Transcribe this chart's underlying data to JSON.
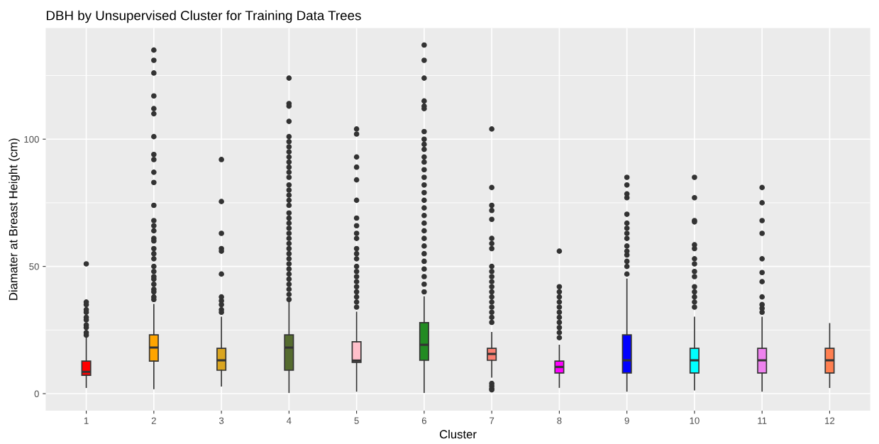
{
  "chart_data": {
    "type": "box",
    "title": "DBH by Unsupervised Cluster for Training Data Trees",
    "xlabel": "Cluster",
    "ylabel": "Diamater at Breast Height (cm)",
    "categories": [
      "1",
      "2",
      "3",
      "4",
      "5",
      "6",
      "7",
      "8",
      "9",
      "10",
      "11",
      "12"
    ],
    "colors": [
      "#ff0000",
      "#ffa500",
      "#daa520",
      "#556b2f",
      "#ffc0cb",
      "#228b22",
      "#fa8072",
      "#ff00ff",
      "#0000ff",
      "#00ffff",
      "#ee82ee",
      "#ff7f50"
    ],
    "boxes": [
      {
        "low": 2.5,
        "q1": 7.2,
        "median": 8.6,
        "q3": 12.8,
        "high": 22,
        "outliers": [
          51,
          36,
          35,
          33,
          32,
          30,
          29,
          27,
          26,
          24,
          23
        ]
      },
      {
        "low": 2,
        "q1": 12.8,
        "median": 18.1,
        "q3": 23.1,
        "high": 35,
        "outliers": [
          135,
          131,
          126,
          117,
          112,
          110,
          101,
          94,
          92,
          87,
          83,
          74,
          68,
          66,
          64,
          61,
          60,
          57,
          55,
          53,
          50,
          48,
          46,
          45,
          43,
          41,
          40,
          38,
          37
        ]
      },
      {
        "low": 3,
        "q1": 9.2,
        "median": 13.1,
        "q3": 17.8,
        "high": 30,
        "outliers": [
          92,
          75.5,
          63,
          57,
          56,
          47,
          38,
          36.5,
          35,
          33,
          32
        ]
      },
      {
        "low": 0.5,
        "q1": 9.2,
        "median": 18.1,
        "q3": 23.1,
        "high": 36,
        "outliers": [
          124,
          114,
          113,
          107,
          101,
          99,
          97,
          95,
          93,
          91,
          89,
          87,
          85,
          82,
          80,
          78,
          76,
          74,
          71,
          69,
          67,
          65,
          63,
          61,
          59,
          57,
          55,
          53,
          51,
          49,
          47,
          45,
          43,
          41,
          39,
          37
        ]
      },
      {
        "low": 1,
        "q1": 12.3,
        "median": 13,
        "q3": 20.4,
        "high": 32,
        "outliers": [
          104,
          102,
          93,
          89,
          84,
          76,
          69,
          66,
          63,
          61,
          57,
          55,
          53,
          50,
          48,
          46,
          44,
          42,
          40,
          38,
          36,
          34
        ]
      },
      {
        "low": 0.5,
        "q1": 13.1,
        "median": 19.2,
        "q3": 27.9,
        "high": 38,
        "outliers": [
          137,
          131,
          124,
          115,
          113,
          112,
          103,
          100,
          98,
          96,
          93,
          91,
          88,
          85,
          82,
          79,
          76,
          73,
          70,
          67,
          64,
          61,
          58,
          55,
          52,
          49,
          46,
          43,
          40
        ]
      },
      {
        "low": 6.5,
        "q1": 13.1,
        "median": 15.6,
        "q3": 17.8,
        "high": 24,
        "outliers": [
          104,
          81,
          74,
          72,
          68.5,
          61,
          59,
          57,
          50,
          48,
          46,
          44,
          42,
          40,
          38,
          36,
          34,
          32,
          30,
          28,
          4,
          3,
          2,
          1.5
        ]
      },
      {
        "low": 2.5,
        "q1": 8.1,
        "median": 10.5,
        "q3": 12.8,
        "high": 19,
        "outliers": [
          56,
          42,
          40,
          38,
          36,
          34,
          32,
          30,
          28,
          26,
          24,
          22
        ]
      },
      {
        "low": 1,
        "q1": 8.1,
        "median": 13.1,
        "q3": 23.1,
        "high": 45,
        "outliers": [
          85,
          82,
          78.5,
          77,
          70.5,
          67,
          65,
          63,
          61,
          58,
          56,
          54.5,
          52,
          50,
          47
        ]
      },
      {
        "low": 1.5,
        "q1": 8.1,
        "median": 13.1,
        "q3": 17.8,
        "high": 30,
        "outliers": [
          85,
          77,
          68,
          67.5,
          58.5,
          57,
          53,
          51,
          48,
          46,
          42,
          40,
          38,
          36,
          34
        ]
      },
      {
        "low": 1,
        "q1": 8.1,
        "median": 13.1,
        "q3": 17.8,
        "high": 30,
        "outliers": [
          81,
          75,
          68,
          63,
          53,
          47.6,
          44,
          38,
          35,
          33.5,
          32
        ]
      },
      {
        "low": 2.5,
        "q1": 8.1,
        "median": 13.1,
        "q3": 17.8,
        "high": 27.5
      }
    ],
    "ylim": [
      -6.7,
      143.7
    ],
    "yticks": [
      0,
      50,
      100
    ],
    "grid": true
  }
}
